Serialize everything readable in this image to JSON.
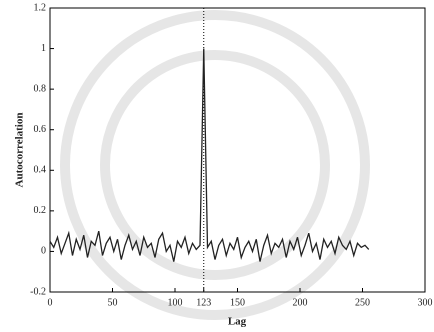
{
  "chart_data": {
    "type": "line",
    "xlabel": "Lag",
    "ylabel": "Autocorrelation",
    "x": [
      0,
      3,
      6,
      9,
      12,
      15,
      18,
      21,
      24,
      27,
      30,
      33,
      36,
      39,
      42,
      45,
      48,
      51,
      54,
      57,
      60,
      63,
      66,
      69,
      72,
      75,
      78,
      81,
      84,
      87,
      90,
      93,
      96,
      99,
      102,
      105,
      108,
      111,
      114,
      117,
      120,
      123,
      126,
      129,
      132,
      135,
      138,
      141,
      144,
      147,
      150,
      153,
      156,
      159,
      162,
      165,
      168,
      171,
      174,
      177,
      180,
      183,
      186,
      189,
      192,
      195,
      198,
      201,
      204,
      207,
      210,
      213,
      216,
      219,
      222,
      225,
      228,
      231,
      234,
      237,
      240,
      243,
      246,
      249,
      252,
      255
    ],
    "series": [
      {
        "color": "#222222",
        "values": [
          0.05,
          0.02,
          0.07,
          -0.01,
          0.04,
          0.09,
          -0.02,
          0.06,
          0.01,
          0.08,
          -0.03,
          0.05,
          0.03,
          0.1,
          -0.02,
          0.04,
          0.07,
          0.0,
          0.06,
          -0.04,
          0.03,
          0.08,
          0.01,
          0.05,
          -0.02,
          0.07,
          0.02,
          0.04,
          -0.03,
          0.06,
          0.09,
          0.0,
          0.03,
          -0.05,
          0.05,
          0.02,
          0.07,
          -0.01,
          0.04,
          0.01,
          0.03,
          1,
          0.02,
          0.05,
          -0.04,
          0.03,
          0.06,
          -0.02,
          0.04,
          0.01,
          0.07,
          -0.03,
          0.02,
          0.05,
          0.0,
          0.06,
          -0.05,
          0.03,
          0.08,
          -0.01,
          0.04,
          0.02,
          0.06,
          -0.03,
          0.05,
          0.01,
          0.07,
          -0.02,
          0.03,
          0.09,
          0.0,
          0.04,
          -0.04,
          0.06,
          0.02,
          0.05,
          -0.01,
          0.07,
          0.03,
          0.01,
          0.05,
          -0.02,
          0.04,
          0.02,
          0.03,
          0.01
        ]
      }
    ],
    "reference_line_x": 123,
    "xlim": [
      0,
      300
    ],
    "xticks": [
      0,
      50,
      100,
      123,
      150,
      200,
      250,
      300
    ],
    "ylim": [
      -0.2,
      1.2
    ],
    "yticks": [
      -0.2,
      0,
      0.2,
      0.4,
      0.6,
      0.8,
      1,
      1.2
    ]
  }
}
